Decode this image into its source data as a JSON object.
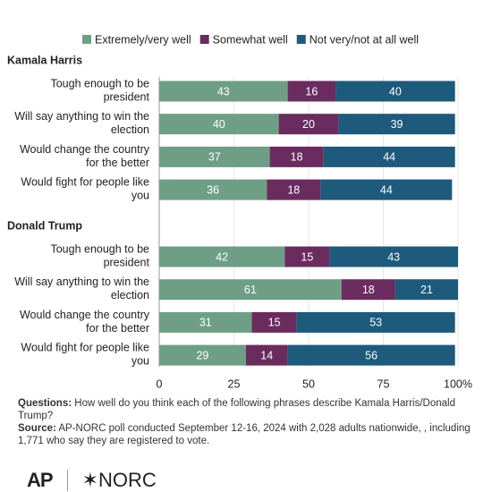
{
  "chart_data": {
    "type": "stacked-bar-horizontal",
    "series": [
      {
        "name": "Extremely/very well",
        "color": "#6e9f86",
        "values": [
          [
            43,
            40,
            37,
            36
          ],
          [
            42,
            61,
            31,
            29
          ]
        ]
      },
      {
        "name": "Somewhat well",
        "color": "#6a2c5f",
        "values": [
          [
            16,
            20,
            18,
            18
          ],
          [
            15,
            18,
            15,
            14
          ]
        ]
      },
      {
        "name": "Not very/not at all well",
        "color": "#1d5a7c",
        "values": [
          [
            40,
            39,
            44,
            44
          ],
          [
            43,
            21,
            53,
            56
          ]
        ]
      }
    ],
    "groups": [
      {
        "title": "Kamala Harris",
        "categories": [
          "Tough enough to be president",
          "Will say anything to win the election",
          "Would change the country for the better",
          "Would fight for people like you"
        ]
      },
      {
        "title": "Donald Trump",
        "categories": [
          "Tough enough to be president",
          "Will say anything to win the election",
          "Would change the country for the better",
          "Would fight for people like you"
        ]
      }
    ],
    "xlim": [
      0,
      100
    ],
    "xticks": [
      0,
      25,
      50,
      75,
      {
        "value": 100,
        "label": "100%"
      }
    ],
    "legend": "top",
    "question_label": "Questions:",
    "question": "How well do you think each of the following phrases describe Kamala Harris/Donald Trump?",
    "source_label": "Source:",
    "source": "AP-NORC poll conducted September 12-16, 2024 with 2,028 adults nationwide, , including 1,771 who say they are registered to vote.",
    "logos": [
      "AP",
      "NORC"
    ]
  }
}
